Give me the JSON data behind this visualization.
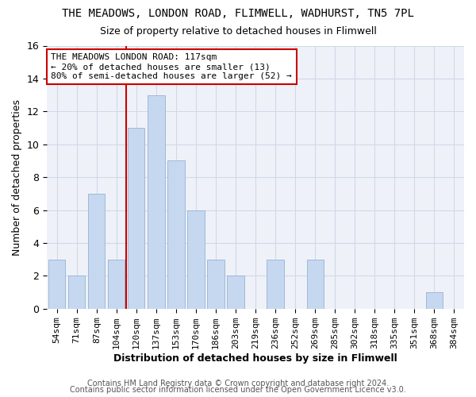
{
  "title": "THE MEADOWS, LONDON ROAD, FLIMWELL, WADHURST, TN5 7PL",
  "subtitle": "Size of property relative to detached houses in Flimwell",
  "xlabel": "Distribution of detached houses by size in Flimwell",
  "ylabel": "Number of detached properties",
  "categories": [
    "54sqm",
    "71sqm",
    "87sqm",
    "104sqm",
    "120sqm",
    "137sqm",
    "153sqm",
    "170sqm",
    "186sqm",
    "203sqm",
    "219sqm",
    "236sqm",
    "252sqm",
    "269sqm",
    "285sqm",
    "302sqm",
    "318sqm",
    "335sqm",
    "351sqm",
    "368sqm",
    "384sqm"
  ],
  "values": [
    3,
    2,
    7,
    3,
    11,
    13,
    9,
    6,
    3,
    2,
    0,
    3,
    0,
    3,
    0,
    0,
    0,
    0,
    0,
    1,
    0
  ],
  "bar_color": "#c5d8f0",
  "bar_edge_color": "#a0b8d8",
  "vline_index": 4,
  "vline_color": "#cc0000",
  "ylim": [
    0,
    16
  ],
  "yticks": [
    0,
    2,
    4,
    6,
    8,
    10,
    12,
    14,
    16
  ],
  "grid_color": "#d0d8e8",
  "bg_color": "#eef2f8",
  "annotation_title": "THE MEADOWS LONDON ROAD: 117sqm",
  "annotation_line1": "← 20% of detached houses are smaller (13)",
  "annotation_line2": "80% of semi-detached houses are larger (52) →",
  "footer1": "Contains HM Land Registry data © Crown copyright and database right 2024.",
  "footer2": "Contains public sector information licensed under the Open Government Licence v3.0.",
  "title_fontsize": 10,
  "subtitle_fontsize": 9,
  "xlabel_fontsize": 9,
  "ylabel_fontsize": 9,
  "tick_fontsize": 8,
  "footer_fontsize": 7
}
